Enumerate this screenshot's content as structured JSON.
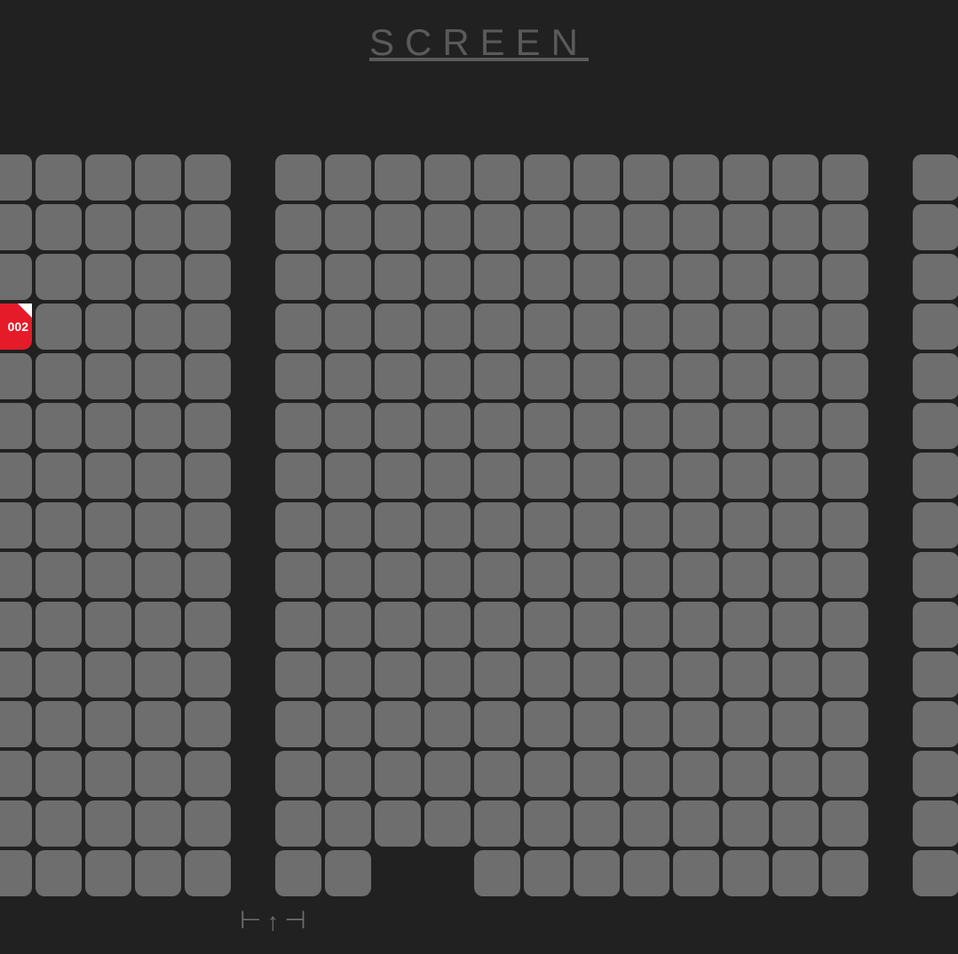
{
  "screen_label": "SCREEN",
  "selected_seat_label": "002",
  "colors": {
    "background": "#212121",
    "seat_available": "#6e6e6e",
    "seat_selected": "#e51b2a",
    "seat_selected_corner": "#ffffff",
    "screen_label": "#5a5a5a",
    "direction_indicator": "#6e6e6e"
  },
  "layout": {
    "seat_size": 52,
    "seat_gap": 4,
    "seat_radius": 10,
    "section_gap": 50,
    "rows": 15,
    "sections": [
      {
        "name": "left",
        "cols": 5,
        "selected": [
          {
            "row": 3,
            "col": 0,
            "label": "002"
          }
        ],
        "gaps": []
      },
      {
        "name": "center",
        "cols": 12,
        "selected": [],
        "gaps": [
          {
            "row": 14,
            "col": 2
          },
          {
            "row": 14,
            "col": 3
          }
        ]
      },
      {
        "name": "right",
        "cols": 1,
        "selected": [],
        "gaps": []
      }
    ]
  },
  "direction_indicator": {
    "left_bracket": "⊢",
    "arrow": "↑",
    "right_bracket": "⊣"
  }
}
